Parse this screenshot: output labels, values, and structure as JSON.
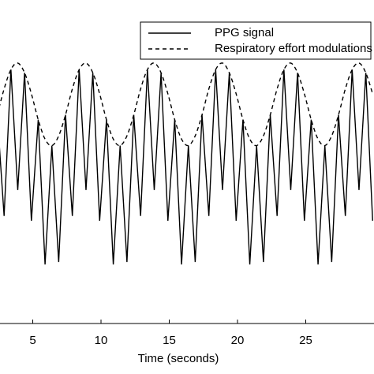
{
  "chart_data": {
    "type": "line",
    "xlabel": "Time (seconds)",
    "x": [
      2.4,
      2.9,
      3.4,
      3.9,
      4.4,
      4.9,
      5.4,
      5.9,
      6.4,
      6.9,
      7.4,
      7.9,
      8.4,
      8.9,
      9.4,
      9.9,
      10.4,
      10.9,
      11.4,
      11.9,
      12.4,
      12.9,
      13.4,
      13.9,
      14.4,
      14.9,
      15.4,
      15.9,
      16.4,
      16.9,
      17.4,
      17.9,
      18.4,
      18.9,
      19.4,
      19.9,
      20.4,
      20.9,
      21.4,
      21.9,
      22.4,
      22.9,
      23.4,
      23.9,
      24.4,
      24.9,
      25.4,
      25.9,
      26.4,
      26.9,
      27.4,
      27.9,
      28.4,
      28.9,
      29.4,
      29.9
    ],
    "series": [
      {
        "name": "PPG signal",
        "color": "#000000",
        "dashed": false,
        "smooth": false,
        "values": [
          0.58,
          -0.67,
          1.14,
          -0.35,
          1.1,
          -0.73,
          0.52,
          -1.27,
          0.2,
          -1.24,
          0.58,
          -0.67,
          1.14,
          -0.35,
          1.1,
          -0.73,
          0.52,
          -1.27,
          0.2,
          -1.24,
          0.58,
          -0.67,
          1.14,
          -0.35,
          1.1,
          -0.73,
          0.52,
          -1.27,
          0.2,
          -1.24,
          0.58,
          -0.67,
          1.14,
          -0.35,
          1.1,
          -0.73,
          0.52,
          -1.27,
          0.2,
          -1.24,
          0.58,
          -0.67,
          1.14,
          -0.35,
          1.1,
          -0.73,
          0.52,
          -1.27,
          0.2,
          -1.24,
          0.58,
          -0.67,
          1.14,
          -0.35,
          1.1,
          -0.73
        ]
      },
      {
        "name": "Respiratory effort modulations",
        "color": "#000000",
        "dashed": true,
        "smooth": true,
        "values": [
          0.58,
          0.9,
          1.14,
          1.22,
          1.1,
          0.84,
          0.52,
          0.28,
          0.2,
          0.32,
          0.58,
          0.9,
          1.14,
          1.22,
          1.1,
          0.84,
          0.52,
          0.28,
          0.2,
          0.32,
          0.58,
          0.9,
          1.14,
          1.22,
          1.1,
          0.84,
          0.52,
          0.28,
          0.2,
          0.32,
          0.58,
          0.9,
          1.14,
          1.22,
          1.1,
          0.84,
          0.52,
          0.28,
          0.2,
          0.32,
          0.58,
          0.9,
          1.14,
          1.22,
          1.1,
          0.84,
          0.52,
          0.28,
          0.2,
          0.32,
          0.58,
          0.9,
          1.14,
          1.22,
          1.1,
          0.84
        ]
      }
    ],
    "xlim": [
      2.6,
      30
    ],
    "xticks": [
      5,
      10,
      15,
      20,
      25
    ],
    "ylim": [
      -2,
      2
    ],
    "legend": "upper right",
    "grid": false
  }
}
